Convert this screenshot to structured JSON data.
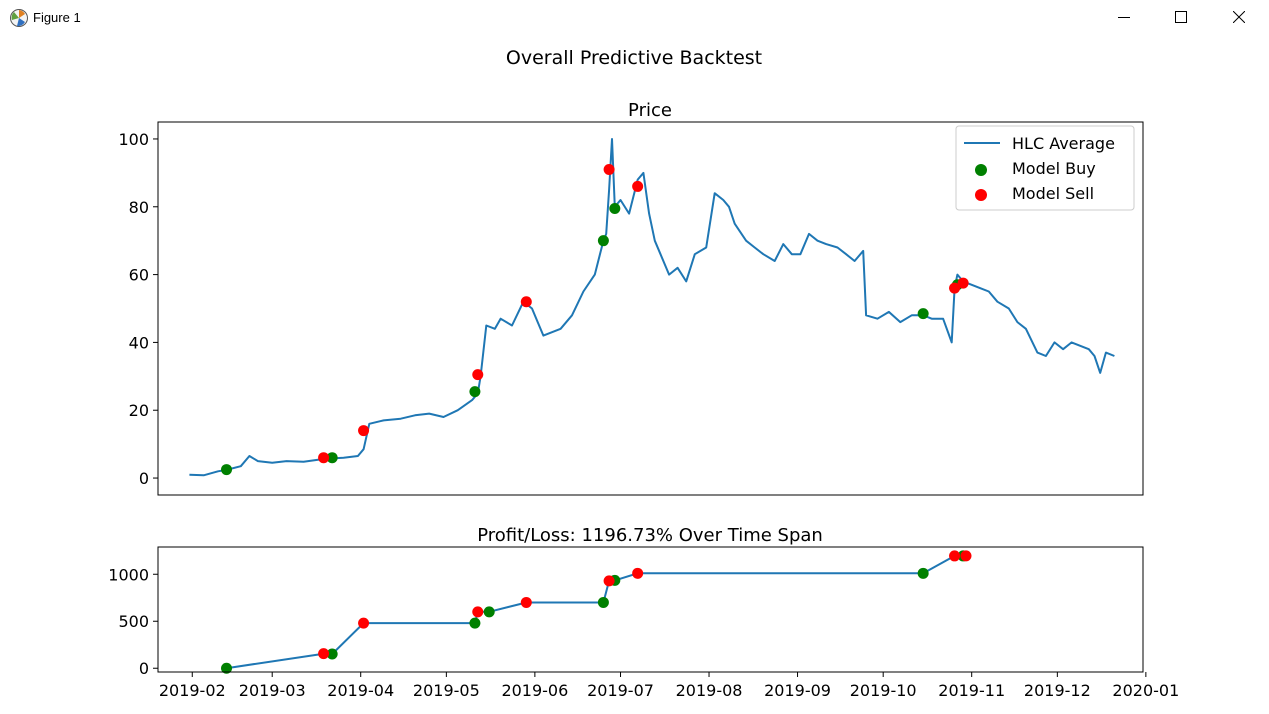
{
  "window": {
    "title": "Figure 1",
    "minimize_icon": "minimize-icon",
    "maximize_icon": "maximize-icon",
    "close_icon": "close-icon",
    "app_icon": "matplotlib-icon"
  },
  "figure": {
    "suptitle": "Overall Predictive Backtest",
    "colors": {
      "line": "#1f77b4",
      "buy": "#008000",
      "sell": "#ff0000",
      "axes": "#000000"
    }
  },
  "chart_data": [
    {
      "type": "line",
      "title": "Price",
      "xlabel": "",
      "ylabel": "",
      "ylim": [
        -5,
        105
      ],
      "xlim": [
        "2019-01-20",
        "2019-12-31"
      ],
      "yticks": [
        0,
        20,
        40,
        60,
        80,
        100
      ],
      "xticks_shown": false,
      "grid": false,
      "legend": {
        "position": "top-right",
        "entries": [
          "HLC Average",
          "Model Buy",
          "Model Sell"
        ]
      },
      "series": [
        {
          "name": "HLC Average",
          "x": [
            "2019-01-31",
            "2019-02-05",
            "2019-02-10",
            "2019-02-13",
            "2019-02-18",
            "2019-02-21",
            "2019-02-24",
            "2019-03-01",
            "2019-03-06",
            "2019-03-12",
            "2019-03-18",
            "2019-03-22",
            "2019-03-26",
            "2019-03-31",
            "2019-04-02",
            "2019-04-04",
            "2019-04-09",
            "2019-04-15",
            "2019-04-20",
            "2019-04-25",
            "2019-04-30",
            "2019-05-05",
            "2019-05-10",
            "2019-05-12",
            "2019-05-13",
            "2019-05-15",
            "2019-05-18",
            "2019-05-20",
            "2019-05-24",
            "2019-05-28",
            "2019-05-31",
            "2019-06-02",
            "2019-06-04",
            "2019-06-07",
            "2019-06-10",
            "2019-06-14",
            "2019-06-18",
            "2019-06-22",
            "2019-06-25",
            "2019-06-26",
            "2019-06-27",
            "2019-06-28",
            "2019-06-29",
            "2019-07-01",
            "2019-07-04",
            "2019-07-07",
            "2019-07-09",
            "2019-07-11",
            "2019-07-13",
            "2019-07-15",
            "2019-07-18",
            "2019-07-21",
            "2019-07-24",
            "2019-07-27",
            "2019-07-31",
            "2019-08-03",
            "2019-08-06",
            "2019-08-08",
            "2019-08-10",
            "2019-08-14",
            "2019-08-17",
            "2019-08-20",
            "2019-08-24",
            "2019-08-27",
            "2019-08-30",
            "2019-09-02",
            "2019-09-05",
            "2019-09-08",
            "2019-09-11",
            "2019-09-15",
            "2019-09-18",
            "2019-09-21",
            "2019-09-24",
            "2019-09-25",
            "2019-09-29",
            "2019-10-03",
            "2019-10-07",
            "2019-10-11",
            "2019-10-15",
            "2019-10-18",
            "2019-10-22",
            "2019-10-25",
            "2019-10-26",
            "2019-10-27",
            "2019-10-29",
            "2019-11-01",
            "2019-11-04",
            "2019-11-07",
            "2019-11-10",
            "2019-11-14",
            "2019-11-17",
            "2019-11-20",
            "2019-11-24",
            "2019-11-27",
            "2019-11-30",
            "2019-12-03",
            "2019-12-06",
            "2019-12-09",
            "2019-12-12",
            "2019-12-14",
            "2019-12-16",
            "2019-12-18",
            "2019-12-21"
          ],
          "y": [
            1,
            0.8,
            2.0,
            2.4,
            3.5,
            6.5,
            5.0,
            4.5,
            5.0,
            4.8,
            5.5,
            5.8,
            6.0,
            6.5,
            8.5,
            16,
            17,
            17.5,
            18.5,
            19,
            18,
            20,
            23,
            25,
            30,
            45,
            44,
            47,
            45,
            52,
            50,
            46,
            42,
            43,
            44,
            48,
            55,
            60,
            70,
            72,
            85,
            100,
            80,
            82,
            78,
            88,
            90,
            78,
            70,
            66,
            60,
            62,
            58,
            66,
            68,
            84,
            82,
            80,
            75,
            70,
            68,
            66,
            64,
            69,
            66,
            66,
            72,
            70,
            69,
            68,
            66,
            64,
            67,
            48,
            47,
            49,
            46,
            48,
            48,
            47,
            47,
            40,
            56,
            60,
            58,
            57,
            56,
            55,
            52,
            50,
            46,
            44,
            37,
            36,
            40,
            38,
            40,
            39,
            38,
            36,
            31,
            37,
            36
          ]
        },
        {
          "name": "Model Buy",
          "x": [
            "2019-02-13",
            "2019-03-22",
            "2019-05-11",
            "2019-06-25",
            "2019-06-29",
            "2019-10-15",
            "2019-10-27"
          ],
          "y": [
            2.5,
            6.0,
            25.5,
            70.0,
            79.5,
            48.5,
            57.0
          ]
        },
        {
          "name": "Model Sell",
          "x": [
            "2019-03-19",
            "2019-04-02",
            "2019-05-12",
            "2019-05-29",
            "2019-06-27",
            "2019-07-07",
            "2019-10-26",
            "2019-10-29"
          ],
          "y": [
            6.0,
            14.0,
            30.5,
            52.0,
            91.0,
            86.0,
            56.0,
            57.5
          ]
        }
      ]
    },
    {
      "type": "line",
      "title": "Profit/Loss: 1196.73% Over Time Span",
      "xlabel": "",
      "ylabel": "",
      "ylim": [
        -40,
        1290
      ],
      "xlim": [
        "2019-01-20",
        "2019-12-31"
      ],
      "yticks": [
        0,
        500,
        1000
      ],
      "xticks": [
        "2019-02",
        "2019-03",
        "2019-04",
        "2019-05",
        "2019-06",
        "2019-07",
        "2019-08",
        "2019-09",
        "2019-10",
        "2019-11",
        "2019-12",
        "2020-01"
      ],
      "grid": false,
      "series": [
        {
          "name": "",
          "x": [
            "2019-02-13",
            "2019-03-19",
            "2019-03-22",
            "2019-04-02",
            "2019-05-11",
            "2019-05-12",
            "2019-05-16",
            "2019-05-29",
            "2019-06-25",
            "2019-06-27",
            "2019-06-29",
            "2019-07-07",
            "2019-10-15",
            "2019-10-26",
            "2019-10-29",
            "2019-10-30"
          ],
          "y": [
            0,
            155,
            152,
            480,
            480,
            600,
            600,
            700,
            700,
            930,
            935,
            1010,
            1010,
            1195,
            1195,
            1196
          ]
        },
        {
          "name": "Model Buy",
          "x": [
            "2019-02-13",
            "2019-03-22",
            "2019-05-11",
            "2019-05-16",
            "2019-06-25",
            "2019-06-29",
            "2019-10-15",
            "2019-10-29"
          ],
          "y": [
            0,
            152,
            480,
            600,
            700,
            935,
            1010,
            1195
          ]
        },
        {
          "name": "Model Sell",
          "x": [
            "2019-03-19",
            "2019-04-02",
            "2019-05-12",
            "2019-05-29",
            "2019-06-27",
            "2019-07-07",
            "2019-10-26",
            "2019-10-30"
          ],
          "y": [
            155,
            480,
            600,
            700,
            930,
            1010,
            1195,
            1196
          ]
        }
      ]
    }
  ]
}
